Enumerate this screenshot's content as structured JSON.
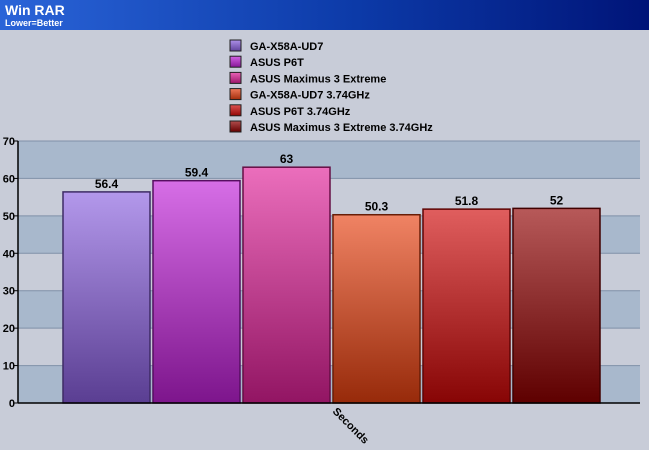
{
  "chart_data": {
    "type": "bar",
    "title": "Win RAR",
    "subtitle": "Lower=Better",
    "categories": [
      "Seconds"
    ],
    "series": [
      {
        "name": "GA-X58A-UD7",
        "values": [
          56.4
        ],
        "color": "#8a60e0"
      },
      {
        "name": "ASUS P6T",
        "values": [
          59.4
        ],
        "color": "#c020d8"
      },
      {
        "name": "ASUS Maximus 3 Extreme",
        "values": [
          63
        ],
        "color": "#e02098"
      },
      {
        "name": "GA-X58A-UD7 3.74GHz",
        "values": [
          50.3
        ],
        "color": "#e84010"
      },
      {
        "name": "ASUS P6T 3.74GHz",
        "values": [
          51.8
        ],
        "color": "#d00808"
      },
      {
        "name": "ASUS Maximus 3 Extreme 3.74GHz",
        "values": [
          52
        ],
        "color": "#900000"
      }
    ],
    "yticks": [
      "0",
      "10",
      "20",
      "30",
      "40",
      "50",
      "60",
      "70"
    ],
    "ylim": [
      0,
      70
    ],
    "grid": true,
    "legend": "top-center",
    "colors": {
      "header_dark": "#001a80",
      "header_light": "#1e5ad0",
      "plot_band_light": "#c8ccd8",
      "plot_band_dark": "#a8b8cc"
    }
  }
}
